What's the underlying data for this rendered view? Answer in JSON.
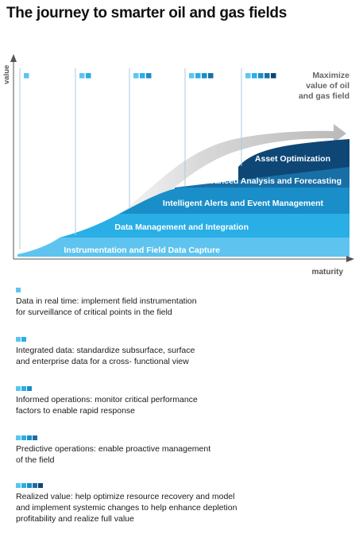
{
  "title": "The journey to smarter oil and gas fields",
  "axes": {
    "y_label": "value",
    "x_label": "maturity"
  },
  "goal_label": "Maximize\nvalue of oil\nand gas field",
  "colors": {
    "layer1": "#5ec4ef",
    "layer2": "#29aee6",
    "layer3": "#1a8ec8",
    "layer4": "#176fa6",
    "layer5": "#0e4776",
    "axis": "#555555",
    "arrow": "#c9c9c9"
  },
  "layers": [
    {
      "label": "Instrumentation and Field Data Capture",
      "color": "#5ec4ef"
    },
    {
      "label": "Data Management and Integration",
      "color": "#29aee6"
    },
    {
      "label": "Intelligent Alerts and Event Management",
      "color": "#1a8ec8"
    },
    {
      "label": "Advanced Analysis and Forecasting",
      "color": "#176fa6"
    },
    {
      "label": "Asset Optimization",
      "color": "#0e4776"
    }
  ],
  "stages": [
    {
      "squares": [
        "#5ec4ef"
      ],
      "text": "Data in real time: implement field instrumentation\nfor surveillance of critical points in the field"
    },
    {
      "squares": [
        "#5ec4ef",
        "#29aee6"
      ],
      "text": "Integrated data: standardize subsurface, surface\nand enterprise data for a cross- functional view"
    },
    {
      "squares": [
        "#5ec4ef",
        "#29aee6",
        "#1a8ec8"
      ],
      "text": "Informed operations: monitor critical performance\nfactors to enable rapid response"
    },
    {
      "squares": [
        "#5ec4ef",
        "#29aee6",
        "#1a8ec8",
        "#176fa6"
      ],
      "text": "Predictive operations: enable proactive management\nof the field"
    },
    {
      "squares": [
        "#5ec4ef",
        "#29aee6",
        "#1a8ec8",
        "#176fa6",
        "#0e4776"
      ],
      "text": "Realized value: help optimize resource recovery and model\nand implement systemic changes to help enhance depletion\nprofitability and realize full value"
    }
  ]
}
